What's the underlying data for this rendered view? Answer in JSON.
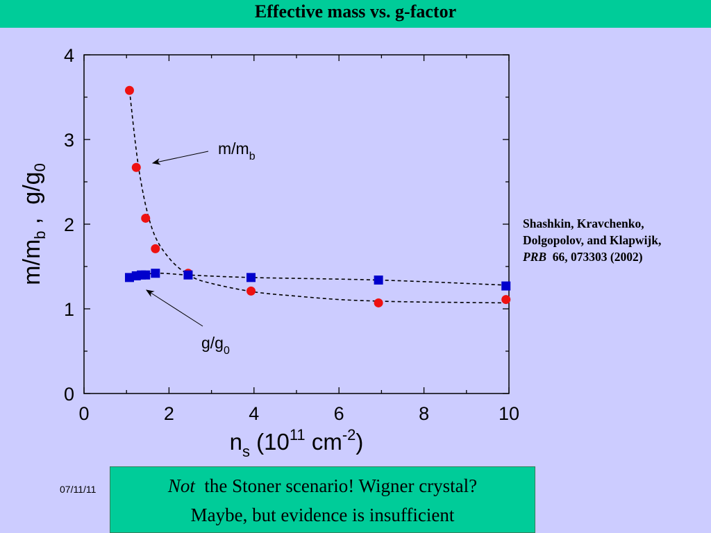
{
  "title": "Effective mass vs. g-factor",
  "date": "07/11/11",
  "citation": {
    "authors_line1": "Shashkin, Kravchenko,",
    "authors_line2": "Dolgopolov, and Klapwijk,",
    "journal": "PRB",
    "ref": "66, 073303 (2002)"
  },
  "callout": {
    "emph": "Not",
    "line1_rest": "the Stoner scenario!  Wigner crystal?",
    "line2": "Maybe, but evidence is insufficient"
  },
  "colors": {
    "header": "#00cc99",
    "background": "#ccccff",
    "mass_series": "#ee1111",
    "g_series": "#0000cc"
  },
  "chart_data": {
    "type": "scatter",
    "xlabel": {
      "base": "n",
      "sub": "s",
      "open": " (10",
      "sup1": "11",
      "unit": " cm",
      "sup2": "-2",
      "close": ")"
    },
    "ylabel": {
      "a": "m/m",
      "a_sub": "b",
      "sep": " ,  ",
      "b": "g/g",
      "b_sub": "0"
    },
    "xlim": [
      0,
      10
    ],
    "ylim": [
      0,
      4
    ],
    "xticks": [
      0,
      2,
      4,
      6,
      8,
      10
    ],
    "yticks": [
      0,
      1,
      2,
      3,
      4
    ],
    "grid": false,
    "series": [
      {
        "label": "m/m",
        "label_sub": "b",
        "marker": "circle",
        "points": [
          [
            1.07,
            3.58
          ],
          [
            1.23,
            2.67
          ],
          [
            1.45,
            2.07
          ],
          [
            1.68,
            1.71
          ],
          [
            2.45,
            1.42
          ],
          [
            3.93,
            1.21
          ],
          [
            6.93,
            1.07
          ],
          [
            9.93,
            1.11
          ]
        ],
        "fit": [
          [
            1.07,
            3.58
          ],
          [
            1.3,
            2.62
          ],
          [
            1.6,
            1.95
          ],
          [
            2.0,
            1.6
          ],
          [
            2.5,
            1.39
          ],
          [
            3.0,
            1.3
          ],
          [
            4.0,
            1.2
          ],
          [
            5.0,
            1.15
          ],
          [
            6.0,
            1.11
          ],
          [
            7.0,
            1.09
          ],
          [
            8.0,
            1.08
          ],
          [
            9.0,
            1.075
          ],
          [
            9.93,
            1.07
          ]
        ]
      },
      {
        "label": "g/g",
        "label_sub": "0",
        "marker": "square",
        "points": [
          [
            1.07,
            1.37
          ],
          [
            1.23,
            1.39
          ],
          [
            1.35,
            1.4
          ],
          [
            1.45,
            1.4
          ],
          [
            1.68,
            1.42
          ],
          [
            2.45,
            1.4
          ],
          [
            3.93,
            1.37
          ],
          [
            6.93,
            1.34
          ],
          [
            9.93,
            1.27
          ]
        ],
        "fit": [
          [
            1.07,
            1.37
          ],
          [
            1.68,
            1.42
          ],
          [
            2.45,
            1.4
          ],
          [
            3.93,
            1.37
          ],
          [
            6.93,
            1.34
          ],
          [
            9.93,
            1.28
          ]
        ]
      }
    ]
  }
}
